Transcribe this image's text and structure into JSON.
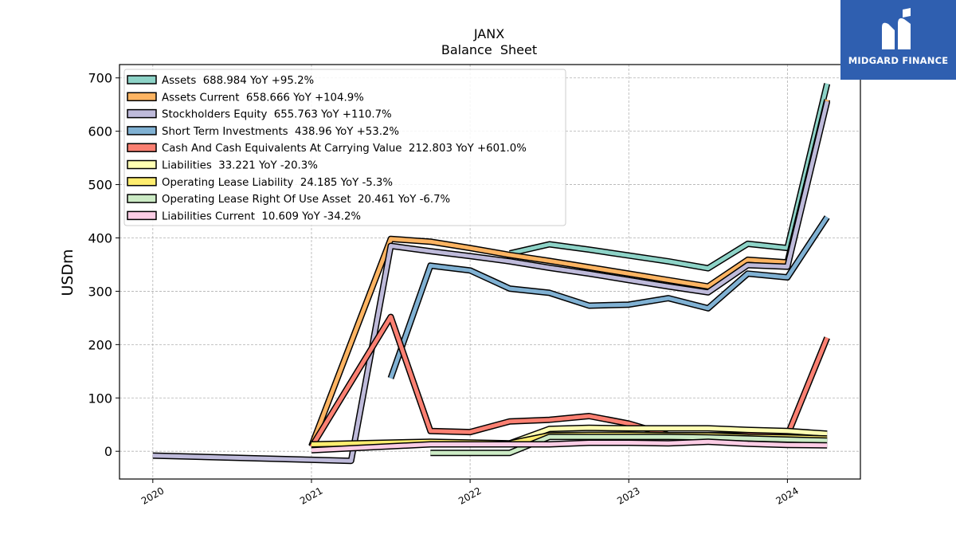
{
  "brand": {
    "name": "MIDGARD FINANCE",
    "logo_icon": "m-monogram-icon",
    "color": "#2f5fb0"
  },
  "chart_data": {
    "type": "line",
    "title": "JANX",
    "subtitle": "Balance  Sheet",
    "xlabel": "",
    "ylabel": "USDm",
    "x_ticks": [
      "2020",
      "2021",
      "2022",
      "2023",
      "2024"
    ],
    "y_ticks": [
      0,
      100,
      200,
      300,
      400,
      500,
      600,
      700
    ],
    "xlim": [
      2019.79,
      2024.46
    ],
    "ylim": [
      -52,
      725
    ],
    "grid": true,
    "legend_position": "top-left",
    "series": [
      {
        "name": "Assets",
        "legend": "Assets  688.984 YoY +95.2%",
        "color": "#8dd3c7",
        "points": [
          [
            2022.25,
            371
          ],
          [
            2022.5,
            388
          ],
          [
            2022.75,
            378
          ],
          [
            2023.0,
            367
          ],
          [
            2023.25,
            356
          ],
          [
            2023.5,
            343
          ],
          [
            2023.75,
            389
          ],
          [
            2024.0,
            381
          ],
          [
            2024.25,
            689
          ]
        ]
      },
      {
        "name": "Assets Current",
        "legend": "Assets Current  658.666 YoY +104.9%",
        "color": "#fdb462",
        "points": [
          [
            2021.0,
            10
          ],
          [
            2021.5,
            398
          ],
          [
            2021.75,
            393
          ],
          [
            2022.0,
            381
          ],
          [
            2022.25,
            368
          ],
          [
            2022.5,
            357
          ],
          [
            2022.75,
            345
          ],
          [
            2023.0,
            333
          ],
          [
            2023.25,
            321
          ],
          [
            2023.5,
            309
          ],
          [
            2023.75,
            359
          ],
          [
            2024.0,
            354
          ],
          [
            2024.25,
            659
          ]
        ]
      },
      {
        "name": "Stockholders Equity",
        "legend": "Stockholders Equity  655.763 YoY +110.7%",
        "color": "#bebada",
        "points": [
          [
            2020.0,
            -8
          ],
          [
            2021.0,
            -16
          ],
          [
            2021.25,
            -18
          ],
          [
            2021.5,
            385
          ],
          [
            2021.75,
            375
          ],
          [
            2022.0,
            366
          ],
          [
            2022.25,
            356
          ],
          [
            2022.5,
            344
          ],
          [
            2022.75,
            333
          ],
          [
            2023.0,
            321
          ],
          [
            2023.25,
            309
          ],
          [
            2023.5,
            298
          ],
          [
            2023.75,
            349
          ],
          [
            2024.0,
            346
          ],
          [
            2024.25,
            656
          ]
        ]
      },
      {
        "name": "Short Term Investments",
        "legend": "Short Term Investments  438.96 YoY +53.2%",
        "color": "#80b1d3",
        "points": [
          [
            2021.5,
            137
          ],
          [
            2021.75,
            348
          ],
          [
            2022.0,
            339
          ],
          [
            2022.25,
            305
          ],
          [
            2022.5,
            297
          ],
          [
            2022.75,
            273
          ],
          [
            2023.0,
            275
          ],
          [
            2023.25,
            287
          ],
          [
            2023.5,
            268
          ],
          [
            2023.75,
            333
          ],
          [
            2024.0,
            326
          ],
          [
            2024.25,
            439
          ]
        ]
      },
      {
        "name": "Cash And Cash Equivalents At Carrying Value",
        "legend": "Cash And Cash Equivalents At Carrying Value  212.803 YoY +601.0%",
        "color": "#fb8072",
        "points": [
          [
            2021.0,
            8
          ],
          [
            2021.5,
            252
          ],
          [
            2021.75,
            38
          ],
          [
            2022.0,
            36
          ],
          [
            2022.25,
            56
          ],
          [
            2022.5,
            59
          ],
          [
            2022.75,
            66
          ],
          [
            2023.0,
            52
          ],
          [
            2023.25,
            30
          ],
          [
            2023.5,
            30
          ],
          [
            2023.75,
            30
          ],
          [
            2024.0,
            30
          ],
          [
            2024.25,
            213
          ]
        ]
      },
      {
        "name": "Liabilities",
        "legend": "Liabilities  33.221 YoY -20.3%",
        "color": "#ffffb3",
        "points": [
          [
            2022.25,
            15
          ],
          [
            2022.5,
            42
          ],
          [
            2022.75,
            44
          ],
          [
            2023.0,
            43
          ],
          [
            2023.25,
            43
          ],
          [
            2023.5,
            43
          ],
          [
            2023.75,
            40
          ],
          [
            2024.0,
            38
          ],
          [
            2024.25,
            33
          ]
        ]
      },
      {
        "name": "Operating Lease Liability",
        "legend": "Operating Lease Liability  24.185 YoY -5.3%",
        "color": "#ffed6f",
        "points": [
          [
            2021.0,
            13
          ],
          [
            2021.75,
            18
          ],
          [
            2022.25,
            15
          ],
          [
            2022.5,
            30
          ],
          [
            2022.75,
            31
          ],
          [
            2023.0,
            31
          ],
          [
            2023.25,
            30
          ],
          [
            2023.5,
            30
          ],
          [
            2023.75,
            27
          ],
          [
            2024.0,
            26
          ],
          [
            2024.25,
            24
          ]
        ]
      },
      {
        "name": "Operating Lease Right Of Use Asset",
        "legend": "Operating Lease Right Of Use Asset  20.461 YoY -6.7%",
        "color": "#ccebc5",
        "points": [
          [
            2021.75,
            -3
          ],
          [
            2022.25,
            -3
          ],
          [
            2022.5,
            27
          ],
          [
            2022.75,
            27
          ],
          [
            2023.0,
            27
          ],
          [
            2023.25,
            27
          ],
          [
            2023.5,
            26
          ],
          [
            2023.75,
            24
          ],
          [
            2024.0,
            22
          ],
          [
            2024.25,
            20
          ]
        ]
      },
      {
        "name": "Liabilities Current",
        "legend": "Liabilities Current  10.609 YoY -34.2%",
        "color": "#fccde5",
        "points": [
          [
            2021.0,
            2
          ],
          [
            2021.75,
            13
          ],
          [
            2022.0,
            13
          ],
          [
            2022.25,
            13
          ],
          [
            2022.5,
            13
          ],
          [
            2022.75,
            16
          ],
          [
            2023.0,
            16
          ],
          [
            2023.25,
            15
          ],
          [
            2023.5,
            18
          ],
          [
            2023.75,
            14
          ],
          [
            2024.0,
            12
          ],
          [
            2024.25,
            11
          ]
        ]
      }
    ]
  }
}
